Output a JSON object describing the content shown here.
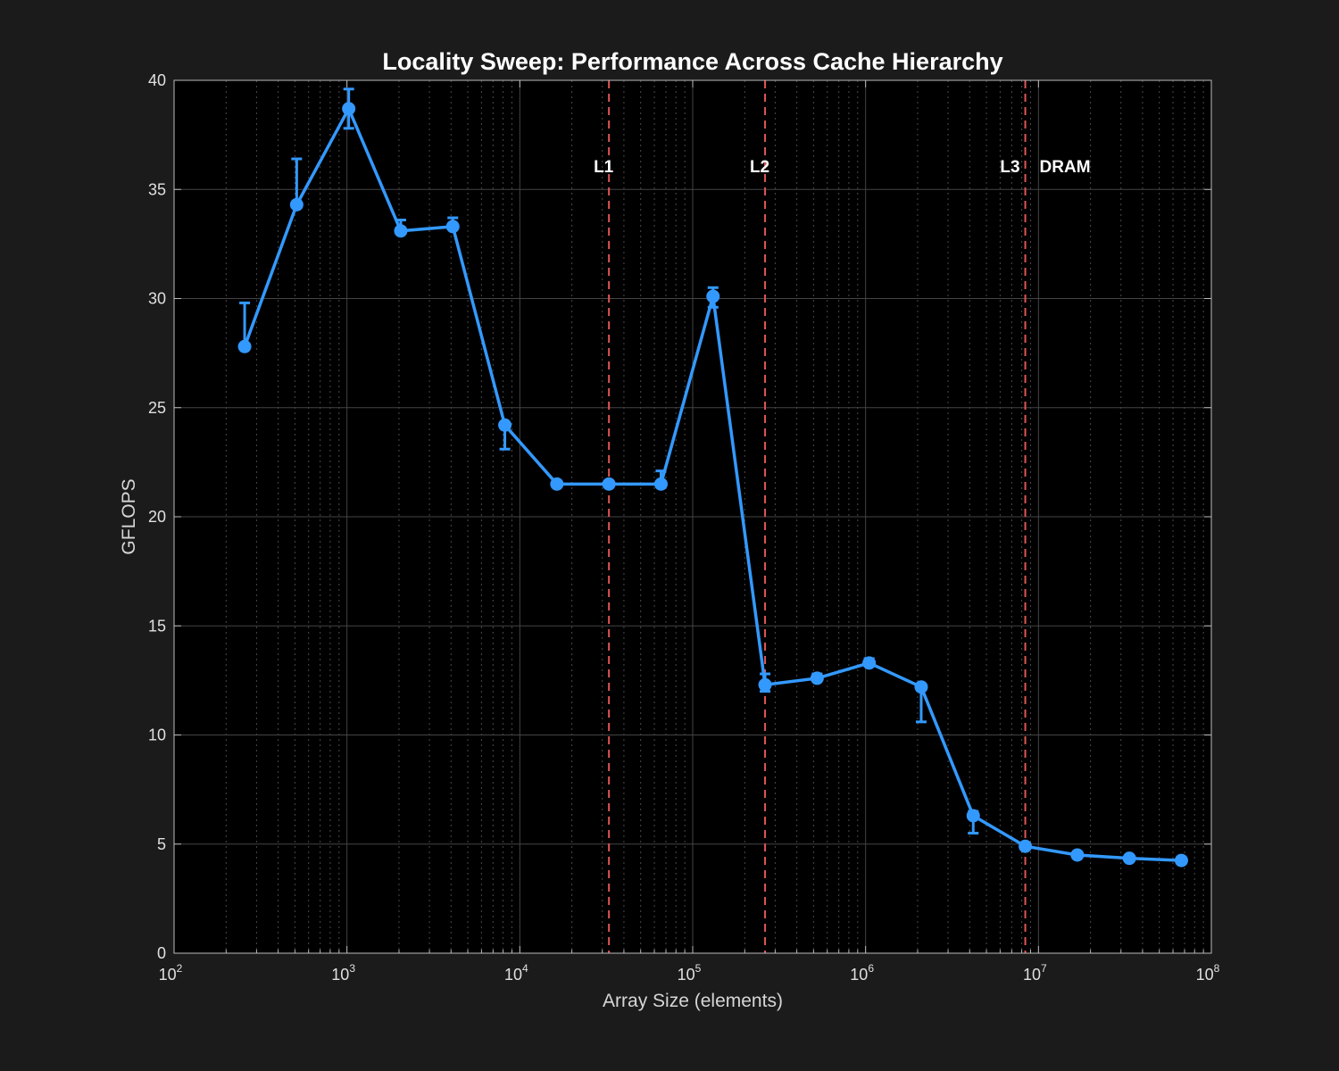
{
  "chart_data": {
    "type": "line",
    "title": "Locality Sweep: Performance Across Cache Hierarchy",
    "xlabel": "Array Size (elements)",
    "ylabel": "GFLOPS",
    "x_scale": "log",
    "xlim": [
      100,
      100000000
    ],
    "ylim": [
      0,
      40
    ],
    "x_ticks": [
      {
        "base": "10",
        "exp": "2"
      },
      {
        "base": "10",
        "exp": "3"
      },
      {
        "base": "10",
        "exp": "4"
      },
      {
        "base": "10",
        "exp": "5"
      },
      {
        "base": "10",
        "exp": "6"
      },
      {
        "base": "10",
        "exp": "7"
      },
      {
        "base": "10",
        "exp": "8"
      }
    ],
    "y_ticks": [
      "0",
      "5",
      "10",
      "15",
      "20",
      "25",
      "30",
      "35",
      "40"
    ],
    "grid": true,
    "series_color": "#3399ff",
    "marker_line_color": "#e05555",
    "series": [
      {
        "x": [
          256,
          512,
          1024,
          2048,
          4096,
          8192,
          16384,
          32768,
          65536,
          131072,
          262144,
          524288,
          1048576,
          2097152,
          4194304,
          8388608,
          16777216,
          33554432,
          67108864
        ],
        "y": [
          27.8,
          34.3,
          38.7,
          33.1,
          33.3,
          24.2,
          21.5,
          21.5,
          21.5,
          30.1,
          12.3,
          12.6,
          13.3,
          12.2,
          6.3,
          4.9,
          4.5,
          4.35,
          4.25
        ],
        "err_low": [
          0,
          0,
          0.9,
          0,
          0,
          1.1,
          0,
          0,
          0,
          0.5,
          0.3,
          0,
          0.1,
          1.6,
          0.8,
          0,
          0,
          0,
          0
        ],
        "err_high": [
          2.0,
          2.1,
          0.9,
          0.5,
          0.4,
          0,
          0,
          0,
          0.6,
          0.4,
          0.5,
          0.2,
          0.2,
          0,
          0.2,
          0,
          0,
          0,
          0
        ]
      }
    ],
    "annotations": [
      {
        "label": "L1",
        "x": 32768,
        "y": 36
      },
      {
        "label": "L2",
        "x": 262144,
        "y": 36
      },
      {
        "label": "L3",
        "x": 8388608,
        "y": 36
      },
      {
        "label": "DRAM",
        "x": 8388608,
        "y": 36
      }
    ],
    "vlines": [
      32768,
      262144,
      8388608
    ]
  }
}
